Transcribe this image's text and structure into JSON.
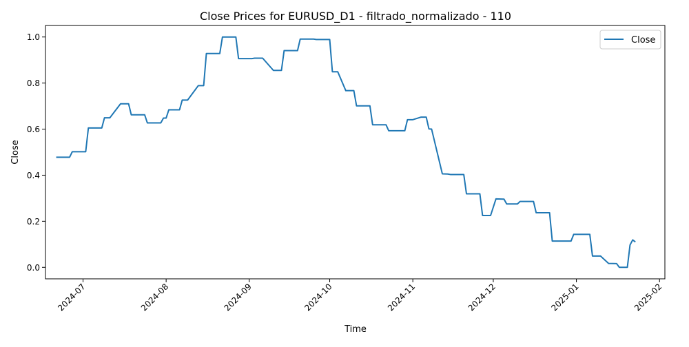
{
  "chart_data": {
    "type": "line",
    "title": "Close Prices for EURUSD_D1 - filtrado_normalizado - 110",
    "xlabel": "Time",
    "ylabel": "Close",
    "xlim": [
      "2024-06-17",
      "2025-02-03"
    ],
    "ylim": [
      -0.05,
      1.05
    ],
    "xticks": [
      "2024-07-01",
      "2024-08-01",
      "2024-09-01",
      "2024-10-01",
      "2024-11-01",
      "2024-12-01",
      "2025-01-01",
      "2025-02-01"
    ],
    "xtick_labels": [
      "2024-07",
      "2024-08",
      "2024-09",
      "2024-10",
      "2024-11",
      "2024-12",
      "2025-01",
      "2025-02"
    ],
    "yticks": [
      0.0,
      0.2,
      0.4,
      0.6,
      0.8,
      1.0
    ],
    "ytick_labels": [
      "0.0",
      "0.2",
      "0.4",
      "0.6",
      "0.8",
      "1.0"
    ],
    "grid": false,
    "legend": {
      "position": "top-right",
      "entries": [
        "Close"
      ]
    },
    "line_color": "#1f77b4",
    "series": [
      {
        "name": "Close",
        "x": [
          "2024-06-21",
          "2024-06-26",
          "2024-06-27",
          "2024-07-02",
          "2024-07-03",
          "2024-07-08",
          "2024-07-09",
          "2024-07-11",
          "2024-07-15",
          "2024-07-18",
          "2024-07-19",
          "2024-07-24",
          "2024-07-25",
          "2024-07-30",
          "2024-07-31",
          "2024-08-01",
          "2024-08-02",
          "2024-08-06",
          "2024-08-07",
          "2024-08-09",
          "2024-08-13",
          "2024-08-15",
          "2024-08-16",
          "2024-08-21",
          "2024-08-22",
          "2024-08-27",
          "2024-08-28",
          "2024-09-02",
          "2024-09-03",
          "2024-09-06",
          "2024-09-10",
          "2024-09-13",
          "2024-09-14",
          "2024-09-19",
          "2024-09-20",
          "2024-09-25",
          "2024-09-26",
          "2024-10-01",
          "2024-10-02",
          "2024-10-04",
          "2024-10-07",
          "2024-10-10",
          "2024-10-11",
          "2024-10-16",
          "2024-10-17",
          "2024-10-22",
          "2024-10-23",
          "2024-10-29",
          "2024-10-30",
          "2024-11-01",
          "2024-11-04",
          "2024-11-06",
          "2024-11-07",
          "2024-11-08",
          "2024-11-12",
          "2024-11-14",
          "2024-11-15",
          "2024-11-20",
          "2024-11-21",
          "2024-11-26",
          "2024-11-27",
          "2024-11-30",
          "2024-12-02",
          "2024-12-05",
          "2024-12-06",
          "2024-12-10",
          "2024-12-11",
          "2024-12-16",
          "2024-12-17",
          "2024-12-22",
          "2024-12-23",
          "2024-12-30",
          "2024-12-31",
          "2025-01-06",
          "2025-01-07",
          "2025-01-10",
          "2025-01-13",
          "2025-01-16",
          "2025-01-17",
          "2025-01-20",
          "2025-01-21",
          "2025-01-22",
          "2025-01-23"
        ],
        "y": [
          0.478,
          0.478,
          0.502,
          0.502,
          0.605,
          0.605,
          0.649,
          0.649,
          0.71,
          0.71,
          0.662,
          0.662,
          0.627,
          0.627,
          0.648,
          0.648,
          0.684,
          0.684,
          0.726,
          0.726,
          0.789,
          0.789,
          0.928,
          0.928,
          1.0,
          1.0,
          0.906,
          0.906,
          0.908,
          0.908,
          0.855,
          0.855,
          0.941,
          0.941,
          0.991,
          0.991,
          0.989,
          0.989,
          0.849,
          0.849,
          0.767,
          0.767,
          0.701,
          0.701,
          0.619,
          0.619,
          0.593,
          0.593,
          0.641,
          0.641,
          0.652,
          0.652,
          0.601,
          0.6,
          0.406,
          0.405,
          0.403,
          0.403,
          0.319,
          0.319,
          0.225,
          0.225,
          0.297,
          0.296,
          0.275,
          0.275,
          0.286,
          0.286,
          0.237,
          0.237,
          0.114,
          0.114,
          0.143,
          0.143,
          0.049,
          0.049,
          0.017,
          0.016,
          0.0,
          0.0,
          0.097,
          0.119,
          0.11
        ]
      }
    ]
  }
}
